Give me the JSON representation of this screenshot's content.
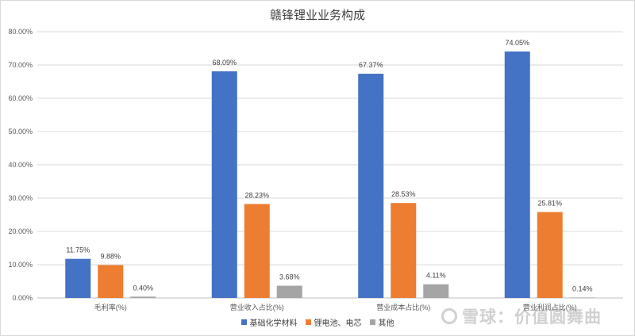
{
  "chart_data": {
    "type": "bar",
    "title": "赣锋锂业业务构成",
    "categories": [
      "毛利率(%)",
      "营业收入占比(%)",
      "营业成本占比(%)",
      "营业利润占比(%)"
    ],
    "series": [
      {
        "name": "基础化学材料",
        "color": "#4472c4",
        "values": [
          11.75,
          68.09,
          67.37,
          74.05
        ],
        "labels": [
          "11.75%",
          "68.09%",
          "67.37%",
          "74.05%"
        ]
      },
      {
        "name": "锂电池、电芯",
        "color": "#ed7d31",
        "values": [
          9.88,
          28.23,
          28.53,
          25.81
        ],
        "labels": [
          "9.88%",
          "28.23%",
          "28.53%",
          "25.81%"
        ]
      },
      {
        "name": "其他",
        "color": "#a5a5a5",
        "values": [
          0.4,
          3.68,
          4.11,
          0.14
        ],
        "labels": [
          "0.40%",
          "3.68%",
          "4.11%",
          "0.14%"
        ]
      }
    ],
    "ylim": [
      0,
      80
    ],
    "yticks": [
      "0.00%",
      "10.00%",
      "20.00%",
      "30.00%",
      "40.00%",
      "50.00%",
      "60.00%",
      "70.00%",
      "80.00%"
    ],
    "grid": true,
    "legend_position": "bottom"
  },
  "watermark": {
    "text": "雪球：价值圆舞曲"
  }
}
